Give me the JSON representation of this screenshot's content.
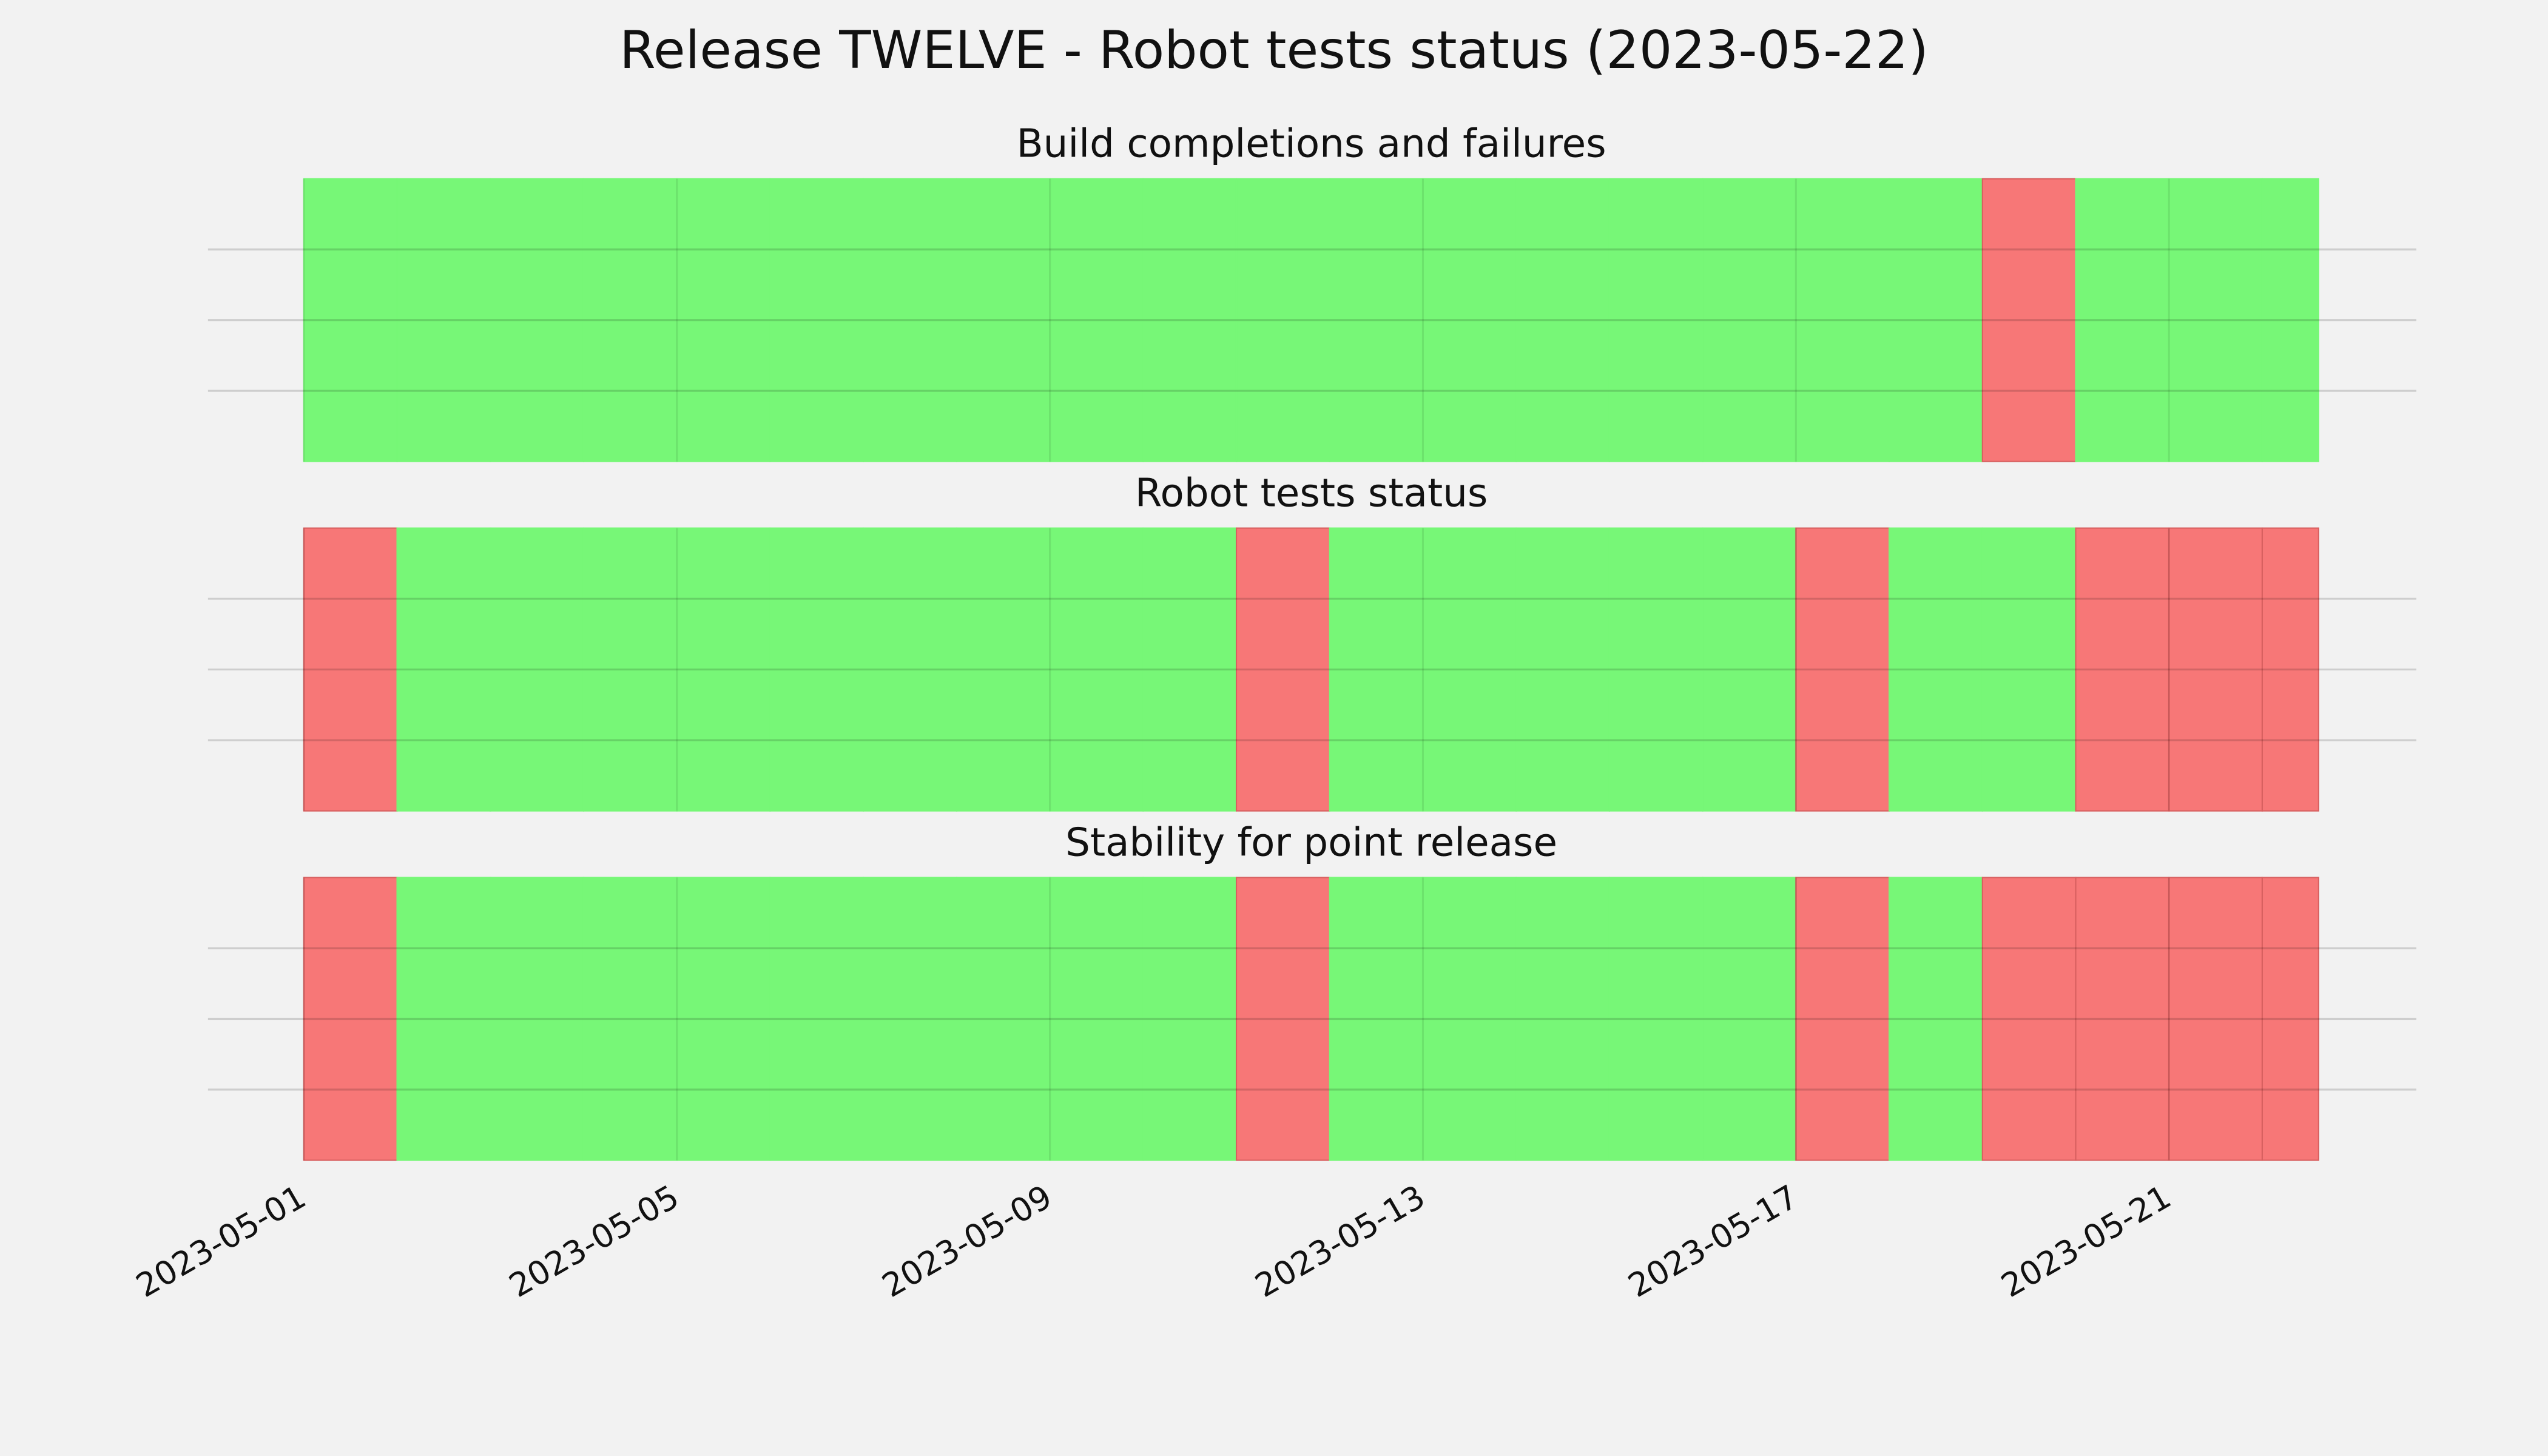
{
  "title": "Release TWELVE - Robot tests status (2023-05-22)",
  "chart_data": [
    {
      "type": "timeline",
      "title": "Build completions and failures",
      "categories": [
        "2023-05-01",
        "2023-05-02",
        "2023-05-03",
        "2023-05-04",
        "2023-05-05",
        "2023-05-06",
        "2023-05-07",
        "2023-05-08",
        "2023-05-09",
        "2023-05-10",
        "2023-05-11",
        "2023-05-12",
        "2023-05-13",
        "2023-05-14",
        "2023-05-15",
        "2023-05-16",
        "2023-05-17",
        "2023-05-18",
        "2023-05-19",
        "2023-05-20",
        "2023-05-21",
        "2023-05-22"
      ],
      "values": [
        1,
        1,
        1,
        1,
        1,
        1,
        1,
        1,
        1,
        1,
        1,
        1,
        1,
        1,
        1,
        1,
        1,
        1,
        0,
        1,
        1,
        1
      ],
      "end": "2023-05-22T14:30",
      "pass_color": "#77f777",
      "fail_color": "#f77777",
      "xlim": [
        "2023-04-29T23:20",
        "2023-05-23T15:40"
      ],
      "xticks": [
        "2023-05-01",
        "2023-05-05",
        "2023-05-09",
        "2023-05-13",
        "2023-05-17",
        "2023-05-21"
      ],
      "ylim": [
        0,
        1
      ],
      "yticks": [
        0.25,
        0.5,
        0.75
      ],
      "grid": true
    },
    {
      "type": "timeline",
      "title": "Robot tests status",
      "categories": [
        "2023-05-01",
        "2023-05-02",
        "2023-05-03",
        "2023-05-04",
        "2023-05-05",
        "2023-05-06",
        "2023-05-07",
        "2023-05-08",
        "2023-05-09",
        "2023-05-10",
        "2023-05-11",
        "2023-05-12",
        "2023-05-13",
        "2023-05-14",
        "2023-05-15",
        "2023-05-16",
        "2023-05-17",
        "2023-05-18",
        "2023-05-19",
        "2023-05-20",
        "2023-05-21",
        "2023-05-22"
      ],
      "values": [
        0,
        1,
        1,
        1,
        1,
        1,
        1,
        1,
        1,
        1,
        0,
        1,
        1,
        1,
        1,
        1,
        0,
        1,
        1,
        0,
        0,
        0
      ],
      "end": "2023-05-22T14:30",
      "pass_color": "#77f777",
      "fail_color": "#f77777",
      "xlim": [
        "2023-04-29T23:20",
        "2023-05-23T15:40"
      ],
      "xticks": [
        "2023-05-01",
        "2023-05-05",
        "2023-05-09",
        "2023-05-13",
        "2023-05-17",
        "2023-05-21"
      ],
      "ylim": [
        0,
        1
      ],
      "yticks": [
        0.25,
        0.5,
        0.75
      ],
      "grid": true
    },
    {
      "type": "timeline",
      "title": "Stability for point release",
      "categories": [
        "2023-05-01",
        "2023-05-02",
        "2023-05-03",
        "2023-05-04",
        "2023-05-05",
        "2023-05-06",
        "2023-05-07",
        "2023-05-08",
        "2023-05-09",
        "2023-05-10",
        "2023-05-11",
        "2023-05-12",
        "2023-05-13",
        "2023-05-14",
        "2023-05-15",
        "2023-05-16",
        "2023-05-17",
        "2023-05-18",
        "2023-05-19",
        "2023-05-20",
        "2023-05-21",
        "2023-05-22"
      ],
      "values": [
        0,
        1,
        1,
        1,
        1,
        1,
        1,
        1,
        1,
        1,
        0,
        1,
        1,
        1,
        1,
        1,
        0,
        1,
        0,
        0,
        0,
        0
      ],
      "end": "2023-05-22T14:30",
      "pass_color": "#77f777",
      "fail_color": "#f77777",
      "xlim": [
        "2023-04-29T23:20",
        "2023-05-23T15:40"
      ],
      "xticks": [
        "2023-05-01",
        "2023-05-05",
        "2023-05-09",
        "2023-05-13",
        "2023-05-17",
        "2023-05-21"
      ],
      "ylim": [
        0,
        1
      ],
      "yticks": [
        0.25,
        0.5,
        0.75
      ],
      "grid": true,
      "xtick_labels": true
    }
  ]
}
